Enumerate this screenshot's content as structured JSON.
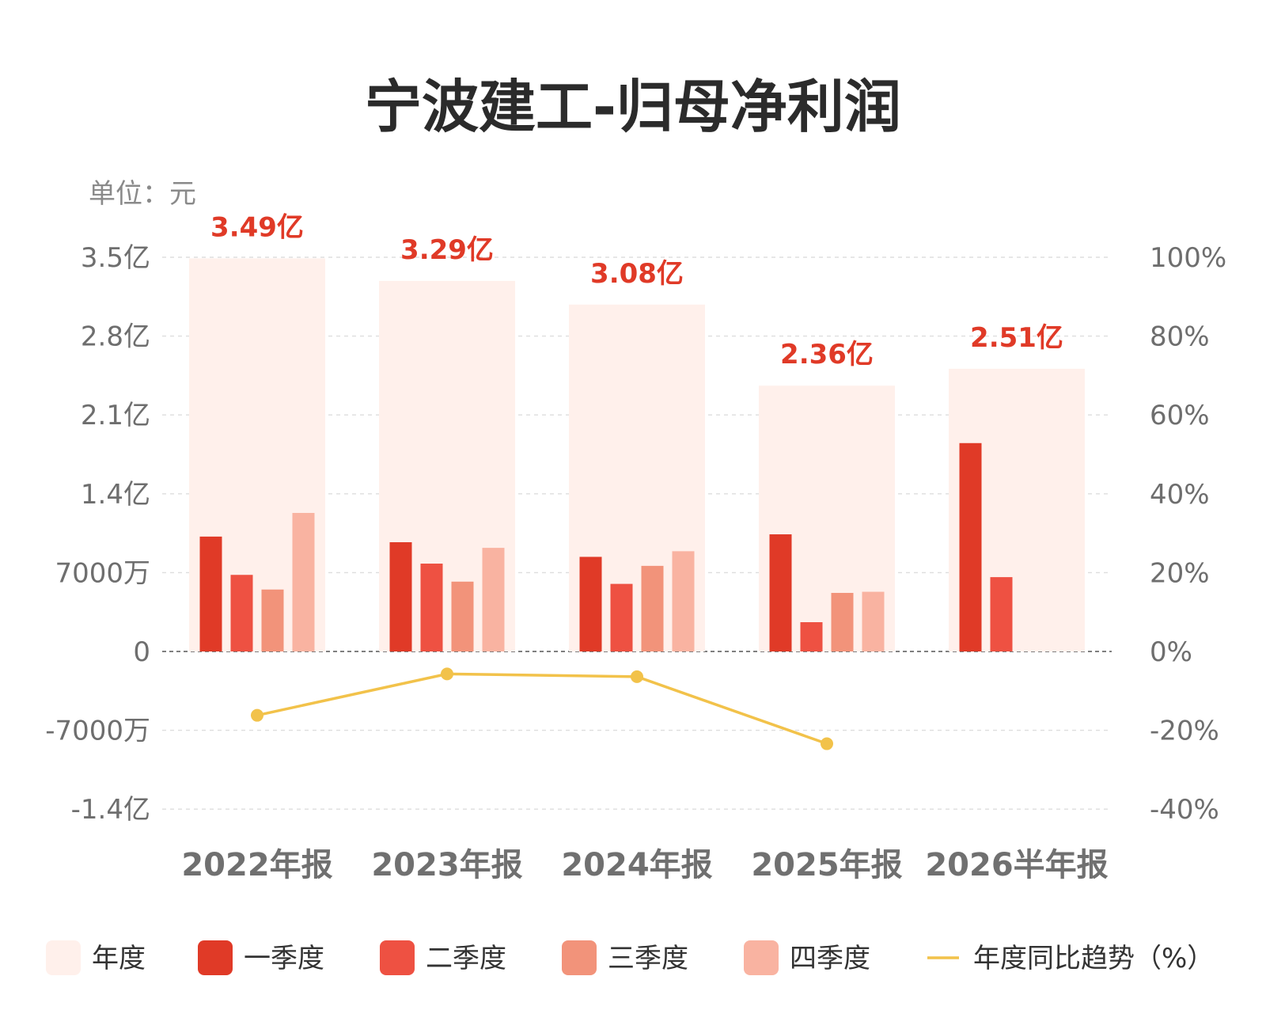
{
  "chart_data": {
    "type": "bar",
    "title": "宁波建工-归母净利润",
    "unit_label": "单位：元",
    "categories": [
      "2022年报",
      "2023年报",
      "2024年报",
      "2025年报",
      "2026半年报"
    ],
    "left_axis": {
      "ticks": [
        {
          "value": 350000000,
          "label": "3.5亿"
        },
        {
          "value": 280000000,
          "label": "2.8亿"
        },
        {
          "value": 210000000,
          "label": "2.1亿"
        },
        {
          "value": 140000000,
          "label": "1.4亿"
        },
        {
          "value": 70000000,
          "label": "7000万"
        },
        {
          "value": 0,
          "label": "0"
        },
        {
          "value": -70000000,
          "label": "-7000万"
        },
        {
          "value": -140000000,
          "label": "-1.4亿"
        }
      ],
      "ylim": [
        -140000000,
        350000000
      ]
    },
    "right_axis": {
      "ticks": [
        {
          "value": 100,
          "label": "100%"
        },
        {
          "value": 80,
          "label": "80%"
        },
        {
          "value": 60,
          "label": "60%"
        },
        {
          "value": 40,
          "label": "40%"
        },
        {
          "value": 20,
          "label": "20%"
        },
        {
          "value": 0,
          "label": "0%"
        },
        {
          "value": -20,
          "label": "-20%"
        },
        {
          "value": -40,
          "label": "-40%"
        }
      ],
      "ylim": [
        -40,
        100
      ]
    },
    "annual": {
      "name": "年度",
      "color": "#fff0eb",
      "values": [
        349000000,
        329000000,
        308000000,
        236000000,
        251000000
      ],
      "labels": [
        "3.49亿",
        "3.29亿",
        "3.08亿",
        "2.36亿",
        "2.51亿"
      ]
    },
    "series": [
      {
        "name": "一季度",
        "color": "#e03a27",
        "values": [
          102000000,
          97000000,
          84000000,
          104000000,
          185000000
        ]
      },
      {
        "name": "二季度",
        "color": "#ee5142",
        "values": [
          68000000,
          78000000,
          60000000,
          26000000,
          66000000
        ]
      },
      {
        "name": "三季度",
        "color": "#f2937a",
        "values": [
          55000000,
          62000000,
          76000000,
          52000000,
          null
        ]
      },
      {
        "name": "四季度",
        "color": "#f9b3a1",
        "values": [
          123000000,
          92000000,
          89000000,
          53000000,
          null
        ]
      }
    ],
    "yoy": {
      "name": "年度同比趋势（%）",
      "color": "#f2c24a",
      "values": [
        -16.2,
        -5.7,
        -6.4,
        -23.4,
        null
      ]
    },
    "grid": true,
    "legend_position": "bottom"
  }
}
